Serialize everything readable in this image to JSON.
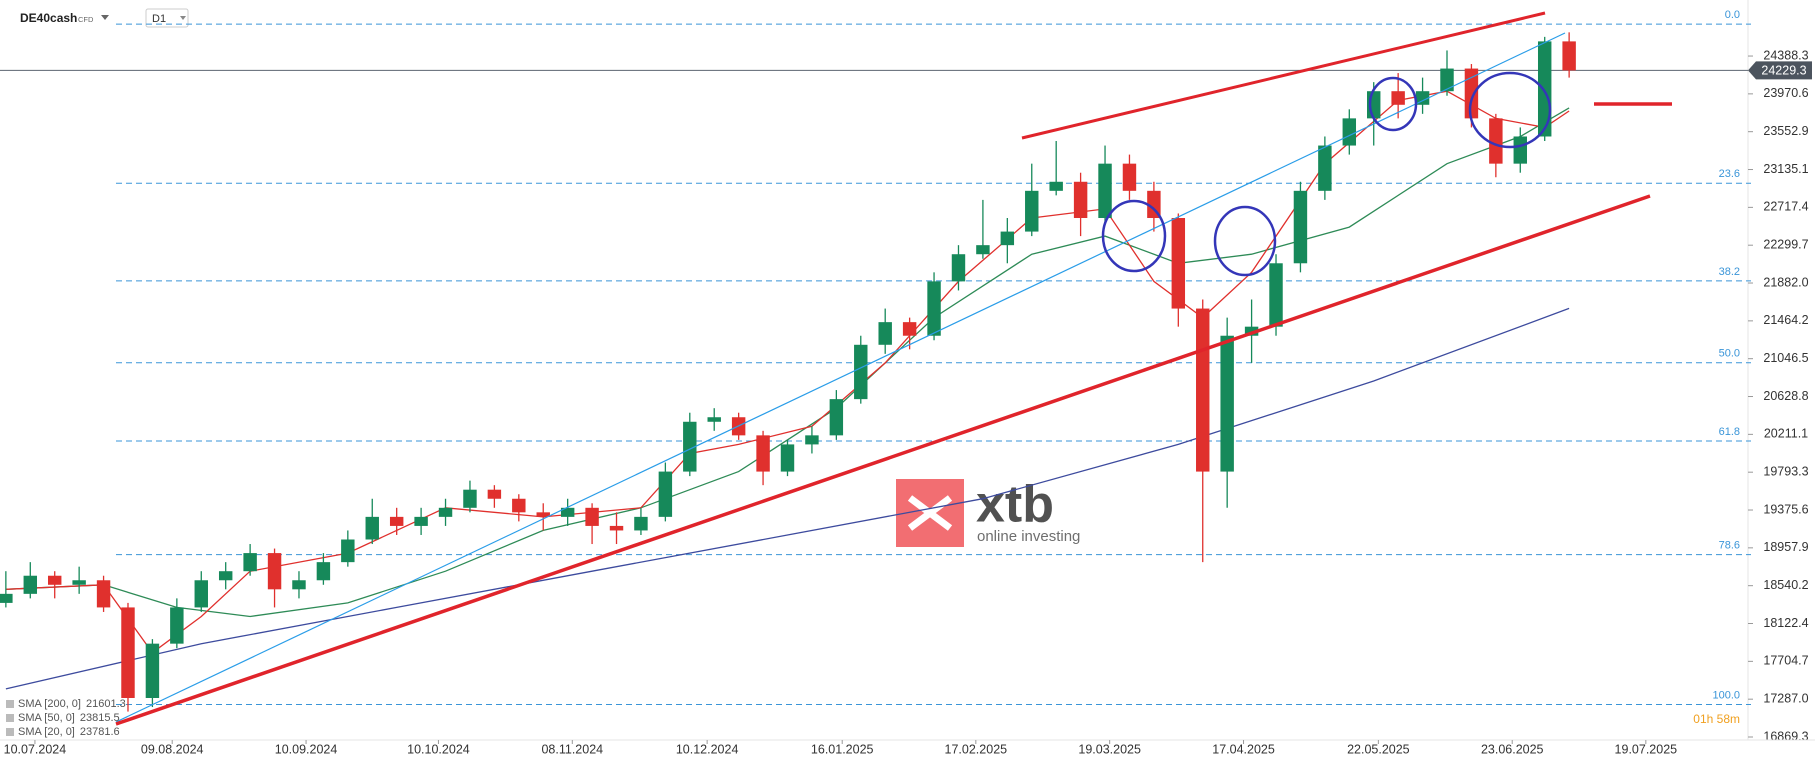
{
  "chart_data": {
    "type": "candlestick",
    "symbol": "DE40cash",
    "instrument_type": "CFD",
    "timeframe": "D1",
    "colors": {
      "up": "#16895a",
      "down": "#e0302d"
    },
    "open": [
      18350,
      18450,
      18650,
      18550,
      18600,
      18300,
      17300,
      17900,
      18300,
      18600,
      18700,
      18900,
      18500,
      18600,
      18800,
      19050,
      19300,
      19200,
      19300,
      19400,
      19600,
      19500,
      19350,
      19300,
      19400,
      19200,
      19150,
      19300,
      19800,
      20350,
      20400,
      20200,
      19800,
      20100,
      20200,
      20600,
      21200,
      21450,
      21300,
      21900,
      22200,
      22300,
      22450,
      22900,
      23000,
      22600,
      23200,
      22900,
      22600,
      21600,
      19800,
      21300,
      21400,
      22100,
      22900,
      23400,
      23700,
      24000,
      23850,
      24000,
      24250,
      23700,
      23200,
      23500,
      24550
    ],
    "high": [
      18700,
      18800,
      18700,
      18750,
      18650,
      18350,
      17950,
      18400,
      18700,
      18800,
      19000,
      18950,
      18700,
      18900,
      19150,
      19500,
      19400,
      19400,
      19500,
      19700,
      19650,
      19550,
      19450,
      19500,
      19450,
      19350,
      19400,
      19900,
      20450,
      20500,
      20450,
      20250,
      20150,
      20300,
      20700,
      21300,
      21600,
      21500,
      22000,
      22300,
      22800,
      22600,
      23200,
      23450,
      23100,
      23400,
      23300,
      23000,
      22650,
      21700,
      21500,
      21700,
      22200,
      23000,
      23500,
      23800,
      24100,
      24200,
      24150,
      24450,
      24300,
      23750,
      23600,
      24600,
      24650
    ],
    "low": [
      18300,
      18400,
      18400,
      18450,
      18250,
      17150,
      17200,
      17850,
      18250,
      18500,
      18650,
      18300,
      18400,
      18550,
      18750,
      19000,
      19100,
      19100,
      19200,
      19350,
      19400,
      19250,
      19150,
      19200,
      19000,
      19000,
      19100,
      19250,
      19750,
      20250,
      20150,
      19650,
      19750,
      20000,
      20150,
      20550,
      21100,
      21150,
      21250,
      21800,
      22150,
      22100,
      22400,
      22850,
      22400,
      22550,
      22800,
      22450,
      21400,
      18800,
      19400,
      21000,
      21300,
      22000,
      22800,
      23300,
      23400,
      23700,
      23750,
      23950,
      23600,
      23050,
      23100,
      23450,
      24150
    ],
    "close": [
      18450,
      18650,
      18550,
      18600,
      18300,
      17300,
      17900,
      18300,
      18600,
      18700,
      18900,
      18500,
      18600,
      18800,
      19050,
      19300,
      19200,
      19300,
      19400,
      19600,
      19500,
      19350,
      19300,
      19400,
      19200,
      19150,
      19300,
      19800,
      20350,
      20400,
      20200,
      19800,
      20100,
      20200,
      20600,
      21200,
      21450,
      21300,
      21900,
      22200,
      22300,
      22450,
      22900,
      23000,
      22600,
      23200,
      22900,
      22600,
      21600,
      19800,
      21300,
      21400,
      22100,
      22900,
      23400,
      23700,
      24000,
      23850,
      24000,
      24250,
      23700,
      23200,
      23500,
      24550,
      24229.3
    ],
    "series": [
      {
        "name": "SMA [200, 0]",
        "color": "#3d4b9e",
        "x": [
          0,
          8,
          16,
          24,
          32,
          40,
          48,
          56,
          64
        ],
        "values": [
          17400,
          17900,
          18300,
          18700,
          19100,
          19500,
          20100,
          20800,
          21601.3
        ]
      },
      {
        "name": "SMA [50, 0]",
        "color": "#2e8b57",
        "x": [
          0,
          4,
          7,
          10,
          14,
          18,
          22,
          26,
          30,
          34,
          38,
          42,
          45,
          48,
          51,
          55,
          59,
          62,
          64
        ],
        "values": [
          18500,
          18550,
          18300,
          18200,
          18350,
          18700,
          19150,
          19400,
          19800,
          20500,
          21500,
          22200,
          22400,
          22100,
          22200,
          22500,
          23200,
          23500,
          23815.5
        ]
      },
      {
        "name": "SMA [20, 0]",
        "color": "#e0302d",
        "x": [
          0,
          4,
          6,
          8,
          10,
          14,
          18,
          22,
          26,
          28,
          30,
          33,
          36,
          39,
          42,
          45,
          47,
          49,
          51,
          54,
          57,
          59,
          61,
          63,
          64
        ],
        "values": [
          18500,
          18550,
          17800,
          18200,
          18700,
          18900,
          19400,
          19300,
          19400,
          20000,
          20100,
          20300,
          21000,
          21900,
          22600,
          22700,
          21900,
          21500,
          22000,
          23200,
          23900,
          24000,
          23700,
          23600,
          23781.6
        ]
      }
    ],
    "fib_levels": [
      {
        "label": "0.0",
        "price": 24740
      },
      {
        "label": "23.6",
        "price": 22983
      },
      {
        "label": "38.2",
        "price": 21905
      },
      {
        "label": "50.0",
        "price": 21002
      },
      {
        "label": "61.8",
        "price": 20137
      },
      {
        "label": "78.6",
        "price": 18883
      },
      {
        "label": "100.0",
        "price": 17228
      }
    ],
    "xlim": [
      -0.24,
      71.2
    ],
    "xticks": [
      {
        "value": 1.19,
        "label": "10.07.2024"
      },
      {
        "value": 6.81,
        "label": "09.08.2024"
      },
      {
        "value": 12.29,
        "label": "10.09.2024"
      },
      {
        "value": 17.71,
        "label": "10.10.2024"
      },
      {
        "value": 23.19,
        "label": "08.11.2024"
      },
      {
        "value": 28.71,
        "label": "10.12.2024"
      },
      {
        "value": 34.24,
        "label": "16.01.2025"
      },
      {
        "value": 39.71,
        "label": "17.02.2025"
      },
      {
        "value": 45.19,
        "label": "19.03.2025"
      },
      {
        "value": 50.67,
        "label": "17.04.2025"
      },
      {
        "value": 56.19,
        "label": "22.05.2025"
      },
      {
        "value": 61.67,
        "label": "23.06.2025"
      },
      {
        "value": 67.14,
        "label": "19.07.2025"
      }
    ],
    "ylim": [
      16781,
      25007
    ],
    "yticks": [
      24388.3,
      23970.6,
      23552.9,
      23135.1,
      22717.4,
      22299.7,
      {
        "value": 21882.0,
        "label": "21882.0"
      },
      21464.2,
      21046.5,
      20628.8,
      20211.1,
      19793.3,
      19375.6,
      18957.9,
      18540.2,
      18122.4,
      17704.7,
      {
        "value": 17287.0,
        "label": "17287.0"
      },
      16869.3
    ],
    "logo": {
      "brand": "xtb",
      "tagline": "online investing"
    },
    "timer": "01h 58m"
  }
}
